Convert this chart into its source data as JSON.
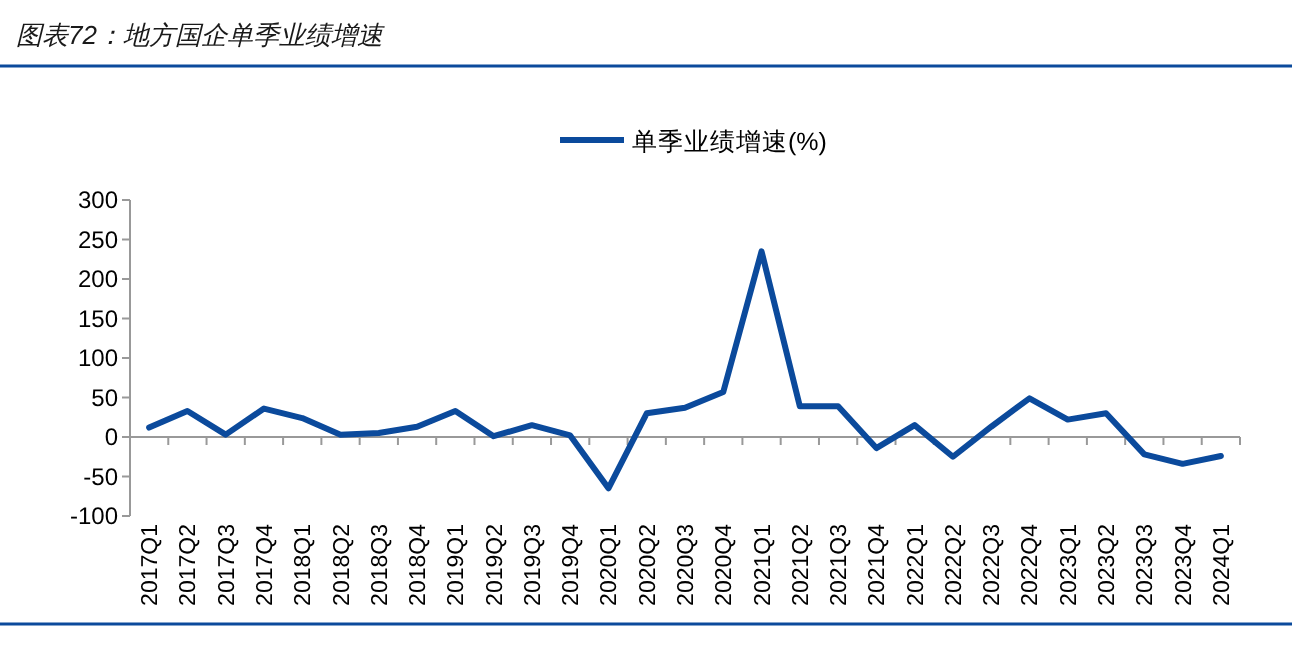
{
  "chart_data": {
    "type": "line",
    "title": "图表72：地方国企单季业绩增速",
    "categories": [
      "2017Q1",
      "2017Q2",
      "2017Q3",
      "2017Q4",
      "2018Q1",
      "2018Q2",
      "2018Q3",
      "2018Q4",
      "2019Q1",
      "2019Q2",
      "2019Q3",
      "2019Q4",
      "2020Q1",
      "2020Q2",
      "2020Q3",
      "2020Q4",
      "2021Q1",
      "2021Q2",
      "2021Q3",
      "2021Q4",
      "2022Q1",
      "2022Q2",
      "2022Q3",
      "2022Q4",
      "2023Q1",
      "2023Q2",
      "2023Q3",
      "2023Q4",
      "2024Q1"
    ],
    "series": [
      {
        "name": "单季业绩增速(%)",
        "color": "#0b4a9c",
        "values": [
          12,
          33,
          3,
          36,
          24,
          3,
          5,
          13,
          33,
          1,
          15,
          2,
          -65,
          30,
          37,
          57,
          235,
          39,
          39,
          -14,
          15,
          -25,
          13,
          49,
          22,
          30,
          -22,
          -34,
          -24
        ]
      }
    ],
    "ylim": [
      -100,
      300
    ],
    "yticks": [
      -100,
      -50,
      0,
      50,
      100,
      150,
      200,
      250,
      300
    ],
    "legend": "top",
    "marker": "none",
    "line_style": "solid"
  }
}
